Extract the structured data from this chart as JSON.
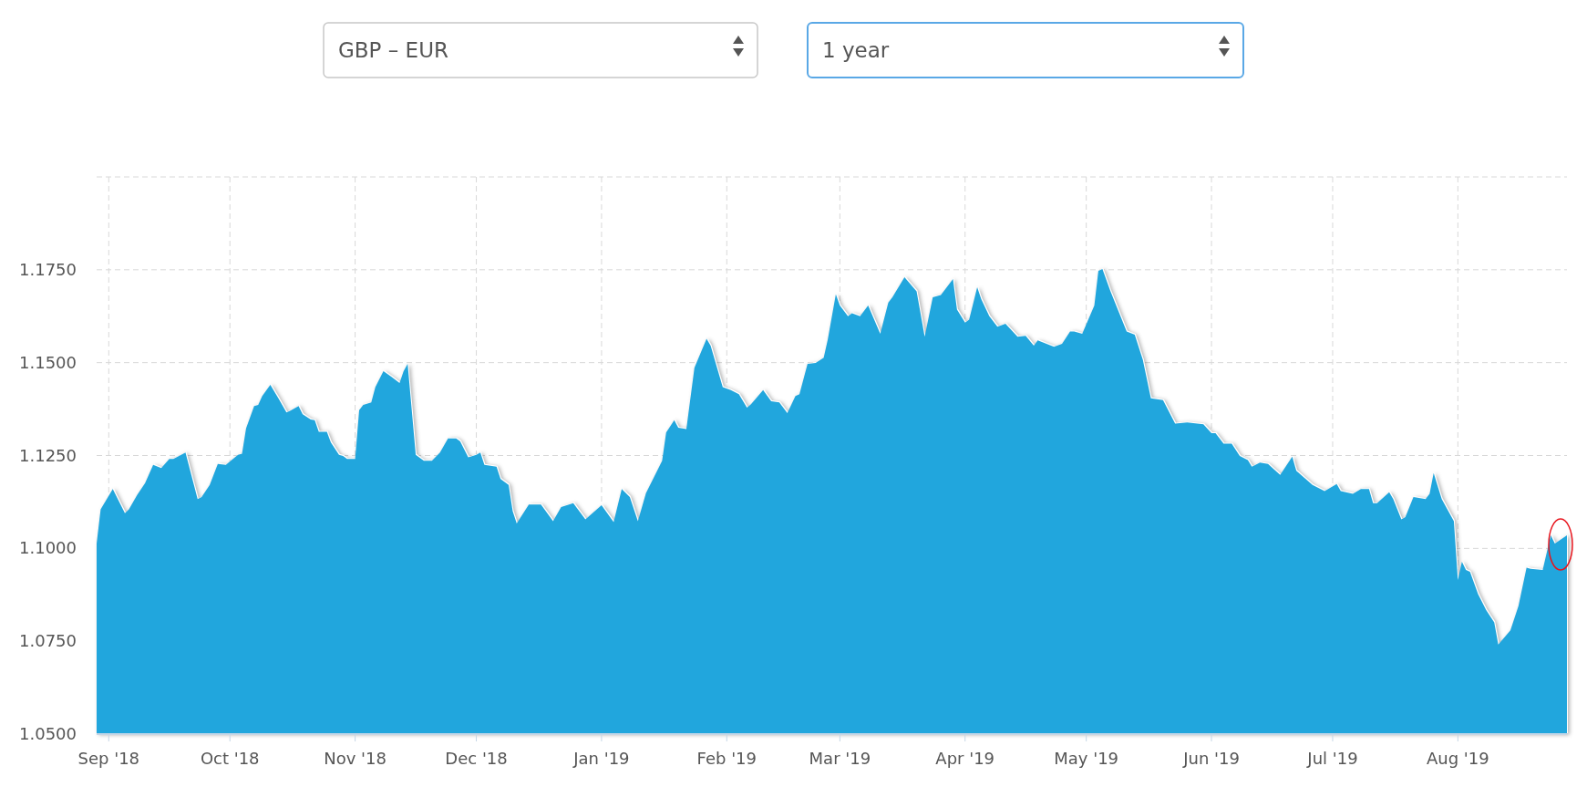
{
  "chart_data": {
    "type": "area",
    "annotations": [
      "GBP – EUR",
      "1 year"
    ],
    "x": [
      "2018-08-29",
      "2018-08-30",
      "2018-09-02",
      "2018-09-05",
      "2018-09-06",
      "2018-09-08",
      "2018-09-10",
      "2018-09-12",
      "2018-09-14",
      "2018-09-16",
      "2018-09-17",
      "2018-09-20",
      "2018-09-23",
      "2018-09-24",
      "2018-09-26",
      "2018-09-28",
      "2018-09-30",
      "2018-10-01",
      "2018-10-03",
      "2018-10-04",
      "2018-10-05",
      "2018-10-07",
      "2018-10-08",
      "2018-10-09",
      "2018-10-11",
      "2018-10-13",
      "2018-10-15",
      "2018-10-16",
      "2018-10-18",
      "2018-10-19",
      "2018-10-21",
      "2018-10-22",
      "2018-10-23",
      "2018-10-25",
      "2018-10-26",
      "2018-10-28",
      "2018-10-29",
      "2018-10-30",
      "2018-11-01",
      "2018-11-02",
      "2018-11-03",
      "2018-11-05",
      "2018-11-06",
      "2018-11-08",
      "2018-11-10",
      "2018-11-12",
      "2018-11-13",
      "2018-11-14",
      "2018-11-16",
      "2018-11-18",
      "2018-11-20",
      "2018-11-22",
      "2018-11-24",
      "2018-11-26",
      "2018-11-27",
      "2018-11-29",
      "2018-12-01",
      "2018-12-02",
      "2018-12-03",
      "2018-12-06",
      "2018-12-07",
      "2018-12-09",
      "2018-12-10",
      "2018-12-11",
      "2018-12-14",
      "2018-12-17",
      "2018-12-20",
      "2018-12-22",
      "2018-12-25",
      "2018-12-28",
      "2019-01-01",
      "2019-01-04",
      "2019-01-06",
      "2019-01-08",
      "2019-01-10",
      "2019-01-12",
      "2019-01-16",
      "2019-01-17",
      "2019-01-19",
      "2019-01-20",
      "2019-01-22",
      "2019-01-24",
      "2019-01-27",
      "2019-01-28",
      "2019-01-31",
      "2019-02-02",
      "2019-02-04",
      "2019-02-06",
      "2019-02-07",
      "2019-02-10",
      "2019-02-12",
      "2019-02-14",
      "2019-02-16",
      "2019-02-18",
      "2019-02-19",
      "2019-02-21",
      "2019-02-23",
      "2019-02-25",
      "2019-02-26",
      "2019-02-28",
      "2019-03-01",
      "2019-03-03",
      "2019-03-04",
      "2019-03-06",
      "2019-03-08",
      "2019-03-11",
      "2019-03-13",
      "2019-03-14",
      "2019-03-17",
      "2019-03-20",
      "2019-03-22",
      "2019-03-24",
      "2019-03-26",
      "2019-03-29",
      "2019-03-30",
      "2019-04-01",
      "2019-04-02",
      "2019-04-04",
      "2019-04-05",
      "2019-04-07",
      "2019-04-09",
      "2019-04-11",
      "2019-04-14",
      "2019-04-16",
      "2019-04-18",
      "2019-04-19",
      "2019-04-23",
      "2019-04-25",
      "2019-04-27",
      "2019-04-28",
      "2019-04-30",
      "2019-05-03",
      "2019-05-04",
      "2019-05-05",
      "2019-05-07",
      "2019-05-09",
      "2019-05-11",
      "2019-05-13",
      "2019-05-15",
      "2019-05-17",
      "2019-05-20",
      "2019-05-23",
      "2019-05-26",
      "2019-05-30",
      "2019-06-01",
      "2019-06-02",
      "2019-06-04",
      "2019-06-06",
      "2019-06-08",
      "2019-06-10",
      "2019-06-11",
      "2019-06-13",
      "2019-06-15",
      "2019-06-18",
      "2019-06-21",
      "2019-06-22",
      "2019-06-26",
      "2019-06-29",
      "2019-07-02",
      "2019-07-03",
      "2019-07-06",
      "2019-07-08",
      "2019-07-10",
      "2019-07-11",
      "2019-07-12",
      "2019-07-15",
      "2019-07-16",
      "2019-07-18",
      "2019-07-19",
      "2019-07-21",
      "2019-07-24",
      "2019-07-25",
      "2019-07-26",
      "2019-07-28",
      "2019-07-31",
      "2019-08-01",
      "2019-08-02",
      "2019-08-03",
      "2019-08-04",
      "2019-08-06",
      "2019-08-08",
      "2019-08-10",
      "2019-08-11",
      "2019-08-14",
      "2019-08-16",
      "2019-08-18",
      "2019-08-19",
      "2019-08-22",
      "2019-08-24",
      "2019-08-25",
      "2019-08-28"
    ],
    "series": [
      {
        "color": "#21a6dd",
        "values": [
          1.1013,
          1.1105,
          1.116,
          1.1095,
          1.1105,
          1.1143,
          1.1176,
          1.1225,
          1.1216,
          1.1241,
          1.1241,
          1.1258,
          1.1133,
          1.1138,
          1.1171,
          1.1227,
          1.1225,
          1.1234,
          1.1252,
          1.1255,
          1.1323,
          1.1383,
          1.1386,
          1.141,
          1.144,
          1.1404,
          1.1366,
          1.1371,
          1.1383,
          1.1361,
          1.1347,
          1.1345,
          1.1314,
          1.1314,
          1.1285,
          1.1252,
          1.1249,
          1.1241,
          1.1241,
          1.1372,
          1.1386,
          1.1393,
          1.1434,
          1.1477,
          1.1462,
          1.1445,
          1.1477,
          1.1497,
          1.1252,
          1.1236,
          1.1236,
          1.1258,
          1.1296,
          1.1296,
          1.1288,
          1.1245,
          1.1252,
          1.1258,
          1.1225,
          1.122,
          1.1187,
          1.1171,
          1.11,
          1.1067,
          1.1118,
          1.1118,
          1.1073,
          1.1111,
          1.1122,
          1.1078,
          1.1116,
          1.1071,
          1.116,
          1.1138,
          1.1073,
          1.1149,
          1.1236,
          1.1312,
          1.1345,
          1.1325,
          1.1321,
          1.1486,
          1.1564,
          1.1546,
          1.1434,
          1.1426,
          1.1415,
          1.1379,
          1.1388,
          1.1426,
          1.1396,
          1.1393,
          1.1364,
          1.141,
          1.1415,
          1.1497,
          1.1499,
          1.1513,
          1.1562,
          1.1684,
          1.1654,
          1.1625,
          1.1633,
          1.1625,
          1.1654,
          1.1578,
          1.1662,
          1.1676,
          1.173,
          1.1692,
          1.157,
          1.1676,
          1.1682,
          1.1725,
          1.1643,
          1.1608,
          1.1616,
          1.1703,
          1.1671,
          1.1625,
          1.1597,
          1.1605,
          1.157,
          1.1572,
          1.1546,
          1.156,
          1.1543,
          1.1551,
          1.1584,
          1.1584,
          1.1578,
          1.1654,
          1.1747,
          1.1752,
          1.1692,
          1.1638,
          1.1584,
          1.1575,
          1.1508,
          1.1404,
          1.1399,
          1.1336,
          1.1339,
          1.1334,
          1.131,
          1.131,
          1.1282,
          1.1282,
          1.1249,
          1.1238,
          1.122,
          1.1231,
          1.1227,
          1.1198,
          1.1247,
          1.1209,
          1.1171,
          1.1154,
          1.1173,
          1.1154,
          1.1147,
          1.116,
          1.116,
          1.1122,
          1.1122,
          1.1151,
          1.1133,
          1.1078,
          1.1084,
          1.1138,
          1.1133,
          1.1147,
          1.1203,
          1.1133,
          1.1073,
          1.0915,
          1.0964,
          1.0942,
          1.0937,
          1.0877,
          1.0834,
          1.0801,
          1.0741,
          1.0779,
          1.0845,
          1.0948,
          1.0945,
          1.0942,
          1.1035,
          1.1013,
          1.1035
        ]
      }
    ],
    "xlim": [
      "2018-08-29",
      "2019-08-28"
    ],
    "xticks": [
      {
        "value": "2018-09-01",
        "label": "Sep '18"
      },
      {
        "value": "2018-10-01",
        "label": "Oct '18"
      },
      {
        "value": "2018-11-01",
        "label": "Nov '18"
      },
      {
        "value": "2018-12-01",
        "label": "Dec '18"
      },
      {
        "value": "2019-01-01",
        "label": "Jan '19"
      },
      {
        "value": "2019-02-01",
        "label": "Feb '19"
      },
      {
        "value": "2019-03-01",
        "label": "Mar '19"
      },
      {
        "value": "2019-04-01",
        "label": "Apr '19"
      },
      {
        "value": "2019-05-01",
        "label": "May '19"
      },
      {
        "value": "2019-06-01",
        "label": "Jun '19"
      },
      {
        "value": "2019-07-01",
        "label": "Jul '19"
      },
      {
        "value": "2019-08-01",
        "label": "Aug '19"
      }
    ],
    "ylim": [
      1.05,
      1.2
    ],
    "yticks": [
      {
        "value": 1.05,
        "label": "1.0500"
      },
      {
        "value": 1.075,
        "label": "1.0750"
      },
      {
        "value": 1.1,
        "label": "1.1000"
      },
      {
        "value": 1.125,
        "label": "1.1250"
      },
      {
        "value": 1.15,
        "label": "1.1500"
      },
      {
        "value": 1.175,
        "label": "1.1750"
      },
      {
        "value": 1.2,
        "label": null
      }
    ],
    "grid": true
  }
}
